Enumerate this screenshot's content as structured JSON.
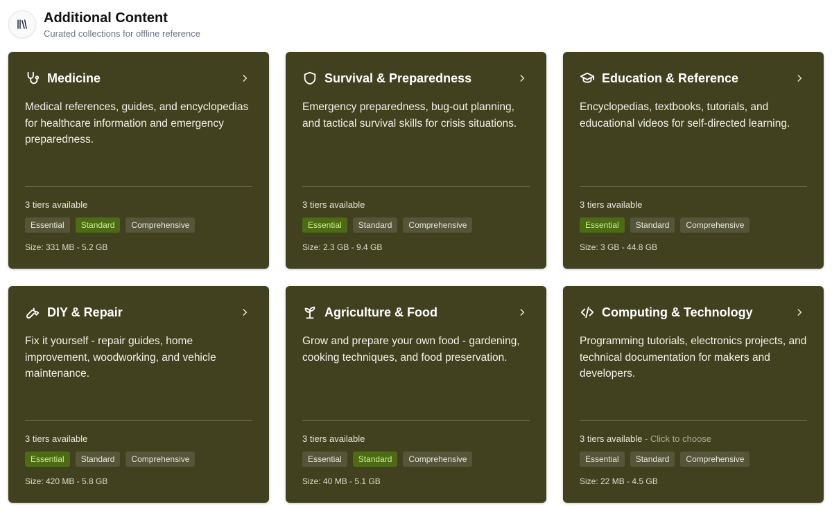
{
  "header": {
    "icon": "library-books-icon",
    "title": "Additional Content",
    "subtitle": "Curated collections for offline reference"
  },
  "colors": {
    "card_bg": "#414120",
    "tag_selected_bg": "#4c6b14",
    "tag_selected_text": "#c8f08a",
    "tag_bg": "#55553a"
  },
  "cards": [
    {
      "icon": "stethoscope-icon",
      "title": "Medicine",
      "description": "Medical references, guides, and encyclopedias for healthcare information and emergency preparedness.",
      "tiers_text": "3 tiers available",
      "hint": "",
      "tiers": [
        "Essential",
        "Standard",
        "Comprehensive"
      ],
      "selected": "Standard",
      "size": "Size: 331 MB - 5.2 GB"
    },
    {
      "icon": "shield-icon",
      "title": "Survival & Preparedness",
      "description": "Emergency preparedness, bug-out planning, and tactical survival skills for crisis situations.",
      "tiers_text": "3 tiers available",
      "hint": "",
      "tiers": [
        "Essential",
        "Standard",
        "Comprehensive"
      ],
      "selected": "Essential",
      "size": "Size: 2.3 GB - 9.4 GB"
    },
    {
      "icon": "graduation-cap-icon",
      "title": "Education & Reference",
      "description": "Encyclopedias, textbooks, tutorials, and educational videos for self-directed learning.",
      "tiers_text": "3 tiers available",
      "hint": "",
      "tiers": [
        "Essential",
        "Standard",
        "Comprehensive"
      ],
      "selected": "Essential",
      "size": "Size: 3 GB - 44.8 GB"
    },
    {
      "icon": "wrench-icon",
      "title": "DIY & Repair",
      "description": "Fix it yourself - repair guides, home improvement, woodworking, and vehicle maintenance.",
      "tiers_text": "3 tiers available",
      "hint": "",
      "tiers": [
        "Essential",
        "Standard",
        "Comprehensive"
      ],
      "selected": "Essential",
      "size": "Size: 420 MB - 5.8 GB"
    },
    {
      "icon": "sprout-icon",
      "title": "Agriculture & Food",
      "description": "Grow and prepare your own food - gardening, cooking techniques, and food preservation.",
      "tiers_text": "3 tiers available",
      "hint": "",
      "tiers": [
        "Essential",
        "Standard",
        "Comprehensive"
      ],
      "selected": "Standard",
      "size": "Size: 40 MB - 5.1 GB"
    },
    {
      "icon": "code-icon",
      "title": "Computing & Technology",
      "description": "Programming tutorials, electronics projects, and technical documentation for makers and developers.",
      "tiers_text": "3 tiers available",
      "hint": " - Click to choose",
      "tiers": [
        "Essential",
        "Standard",
        "Comprehensive"
      ],
      "selected": "",
      "size": "Size: 22 MB - 4.5 GB"
    }
  ]
}
